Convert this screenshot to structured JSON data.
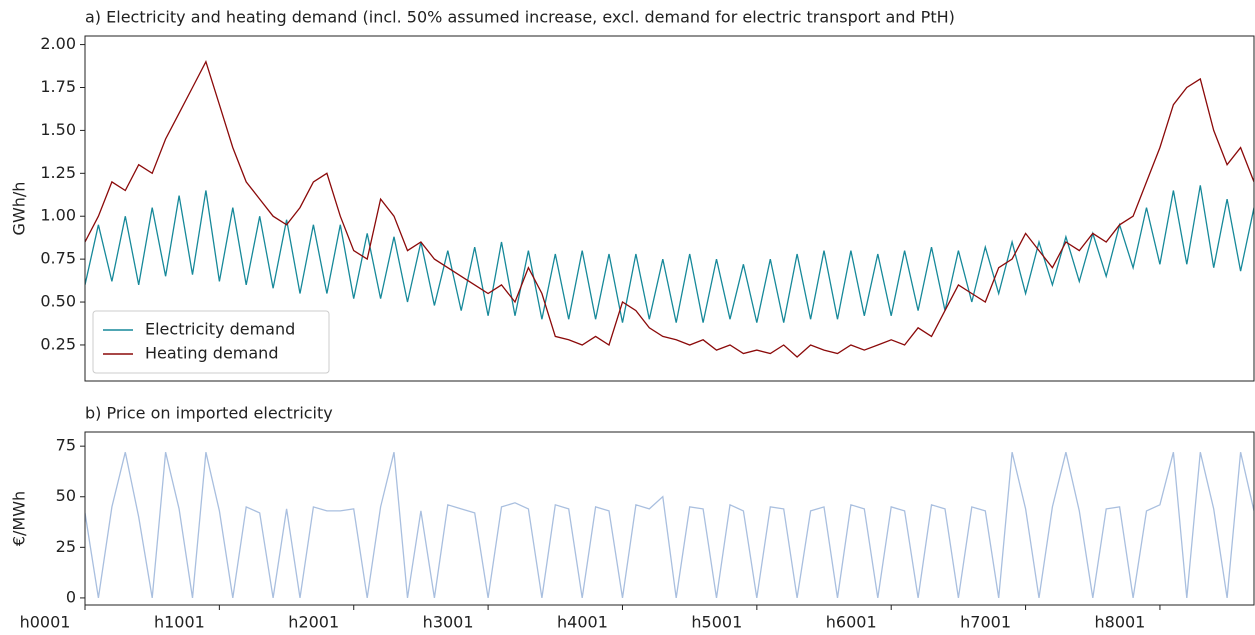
{
  "chart_data": [
    {
      "type": "line",
      "title": "a) Electricity and heating demand (incl. 50% assumed increase, excl. demand for electric transport and PtH)",
      "y_label": "GWh/h",
      "x": [
        1,
        101,
        201,
        301,
        401,
        501,
        601,
        701,
        801,
        901,
        1001,
        1101,
        1201,
        1301,
        1401,
        1501,
        1601,
        1701,
        1801,
        1901,
        2001,
        2101,
        2201,
        2301,
        2401,
        2501,
        2601,
        2701,
        2801,
        2901,
        3001,
        3101,
        3201,
        3301,
        3401,
        3501,
        3601,
        3701,
        3801,
        3901,
        4001,
        4101,
        4201,
        4301,
        4401,
        4501,
        4601,
        4701,
        4801,
        4901,
        5001,
        5101,
        5201,
        5301,
        5401,
        5501,
        5601,
        5701,
        5801,
        5901,
        6001,
        6101,
        6201,
        6301,
        6401,
        6501,
        6601,
        6701,
        6801,
        6901,
        7001,
        7101,
        7201,
        7301,
        7401,
        7501,
        7601,
        7701,
        7801,
        7901,
        8001,
        8101,
        8201,
        8301,
        8401,
        8501,
        8601,
        8701
      ],
      "series": [
        {
          "name": "Electricity demand",
          "color": "#17899a",
          "values": [
            0.6,
            0.95,
            0.62,
            1.0,
            0.6,
            1.05,
            0.65,
            1.12,
            0.66,
            1.15,
            0.62,
            1.05,
            0.6,
            1.0,
            0.58,
            0.98,
            0.55,
            0.95,
            0.55,
            0.95,
            0.52,
            0.9,
            0.52,
            0.88,
            0.5,
            0.85,
            0.48,
            0.8,
            0.45,
            0.82,
            0.42,
            0.85,
            0.42,
            0.8,
            0.4,
            0.78,
            0.4,
            0.8,
            0.4,
            0.78,
            0.38,
            0.78,
            0.4,
            0.75,
            0.38,
            0.78,
            0.38,
            0.75,
            0.4,
            0.72,
            0.38,
            0.75,
            0.38,
            0.78,
            0.4,
            0.8,
            0.4,
            0.8,
            0.42,
            0.78,
            0.42,
            0.8,
            0.45,
            0.82,
            0.45,
            0.8,
            0.5,
            0.82,
            0.55,
            0.85,
            0.55,
            0.85,
            0.6,
            0.88,
            0.62,
            0.9,
            0.65,
            0.95,
            0.7,
            1.05,
            0.72,
            1.15,
            0.72,
            1.18,
            0.7,
            1.1,
            0.68,
            1.05
          ]
        },
        {
          "name": "Heating demand",
          "color": "#8b0a0a",
          "values": [
            0.85,
            1.0,
            1.2,
            1.15,
            1.3,
            1.25,
            1.45,
            1.6,
            1.75,
            1.9,
            1.65,
            1.4,
            1.2,
            1.1,
            1.0,
            0.95,
            1.05,
            1.2,
            1.25,
            1.0,
            0.8,
            0.75,
            1.1,
            1.0,
            0.8,
            0.85,
            0.75,
            0.7,
            0.65,
            0.6,
            0.55,
            0.6,
            0.5,
            0.7,
            0.55,
            0.3,
            0.28,
            0.25,
            0.3,
            0.25,
            0.5,
            0.45,
            0.35,
            0.3,
            0.28,
            0.25,
            0.28,
            0.22,
            0.25,
            0.2,
            0.22,
            0.2,
            0.25,
            0.18,
            0.25,
            0.22,
            0.2,
            0.25,
            0.22,
            0.25,
            0.28,
            0.25,
            0.35,
            0.3,
            0.45,
            0.6,
            0.55,
            0.5,
            0.7,
            0.75,
            0.9,
            0.8,
            0.7,
            0.85,
            0.8,
            0.9,
            0.85,
            0.95,
            1.0,
            1.2,
            1.4,
            1.65,
            1.75,
            1.8,
            1.5,
            1.3,
            1.4,
            1.2
          ]
        }
      ],
      "xlim": [
        1,
        8701
      ],
      "ylim": [
        0.04,
        2.05
      ],
      "yticks": [
        0.25,
        {
          "value": 0.5,
          "label": "0.50"
        },
        0.75,
        {
          "value": 1.0,
          "label": "1.00"
        },
        1.25,
        {
          "value": 1.5,
          "label": "1.50"
        },
        1.75,
        {
          "value": 2.0,
          "label": "2.00"
        }
      ],
      "legend": "lower left"
    },
    {
      "type": "line",
      "title": "b) Price on imported electricity",
      "y_label": "€/MWh",
      "x": [
        1,
        101,
        201,
        301,
        401,
        501,
        601,
        701,
        801,
        901,
        1001,
        1101,
        1201,
        1301,
        1401,
        1501,
        1601,
        1701,
        1801,
        1901,
        2001,
        2101,
        2201,
        2301,
        2401,
        2501,
        2601,
        2701,
        2801,
        2901,
        3001,
        3101,
        3201,
        3301,
        3401,
        3501,
        3601,
        3701,
        3801,
        3901,
        4001,
        4101,
        4201,
        4301,
        4401,
        4501,
        4601,
        4701,
        4801,
        4901,
        5001,
        5101,
        5201,
        5301,
        5401,
        5501,
        5601,
        5701,
        5801,
        5901,
        6001,
        6101,
        6201,
        6301,
        6401,
        6501,
        6601,
        6701,
        6801,
        6901,
        7001,
        7101,
        7201,
        7301,
        7401,
        7501,
        7601,
        7701,
        7801,
        7901,
        8001,
        8101,
        8201,
        8301,
        8401,
        8501,
        8601,
        8701
      ],
      "series": [
        {
          "color": "#a9bfdf",
          "values": [
            42,
            0,
            45,
            72,
            40,
            0,
            72,
            44,
            0,
            72,
            43,
            0,
            45,
            42,
            0,
            44,
            0,
            45,
            43,
            43,
            44,
            0,
            45,
            72,
            0,
            43,
            0,
            46,
            44,
            42,
            0,
            45,
            47,
            44,
            0,
            46,
            44,
            0,
            45,
            43,
            0,
            46,
            44,
            50,
            0,
            45,
            44,
            0,
            46,
            43,
            0,
            45,
            44,
            0,
            43,
            45,
            0,
            46,
            44,
            0,
            45,
            43,
            0,
            46,
            44,
            0,
            45,
            43,
            0,
            72,
            44,
            0,
            45,
            72,
            43,
            0,
            44,
            45,
            0,
            43,
            46,
            72,
            0,
            72,
            44,
            0,
            72,
            43
          ]
        }
      ],
      "xlim": [
        1,
        8701
      ],
      "ylim": [
        -3.5,
        82
      ],
      "yticks": [
        0,
        25,
        50,
        75
      ],
      "xticks": [
        {
          "value": 1,
          "label": "h0001"
        },
        {
          "value": 1001,
          "label": "h1001"
        },
        {
          "value": 2001,
          "label": "h2001"
        },
        {
          "value": 3001,
          "label": "h3001"
        },
        {
          "value": 4001,
          "label": "h4001"
        },
        {
          "value": 5001,
          "label": "h5001"
        },
        {
          "value": 6001,
          "label": "h6001"
        },
        {
          "value": 7001,
          "label": "h7001"
        },
        {
          "value": 8001,
          "label": "h8001"
        }
      ]
    }
  ]
}
